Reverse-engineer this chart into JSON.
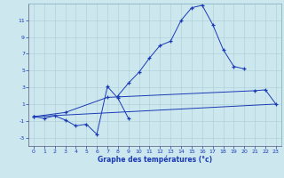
{
  "xlabel": "Graphe des températures (°c)",
  "background_color": "#cce8ee",
  "grid_color": "#aacdd6",
  "line_color": "#1a3ab5",
  "x_values": [
    0,
    1,
    2,
    3,
    4,
    5,
    6,
    7,
    8,
    9,
    10,
    11,
    12,
    13,
    14,
    15,
    16,
    17,
    18,
    19,
    20,
    21,
    22,
    23
  ],
  "line_main": [
    null,
    null,
    null,
    null,
    null,
    null,
    null,
    null,
    2.0,
    3.5,
    4.8,
    6.5,
    8.0,
    8.5,
    11.0,
    12.5,
    12.8,
    10.5,
    7.5,
    5.5,
    5.2,
    null,
    null,
    null
  ],
  "line_flat1": [
    -0.5,
    null,
    null,
    null,
    null,
    null,
    null,
    null,
    null,
    null,
    null,
    null,
    null,
    null,
    null,
    null,
    null,
    null,
    null,
    null,
    null,
    null,
    null,
    1.0
  ],
  "line_flat2": [
    -0.5,
    null,
    null,
    null,
    null,
    null,
    null,
    null,
    1.5,
    null,
    null,
    null,
    null,
    null,
    null,
    null,
    null,
    null,
    null,
    null,
    null,
    null,
    null,
    null
  ],
  "line_flat2_end": [
    null,
    null,
    null,
    null,
    null,
    null,
    null,
    null,
    null,
    null,
    null,
    null,
    null,
    null,
    null,
    null,
    null,
    null,
    null,
    null,
    null,
    null,
    null,
    1.0
  ],
  "line_zigzag": [
    -0.5,
    -0.7,
    -0.4,
    -0.9,
    -1.6,
    -1.4,
    -2.6,
    3.1,
    1.7,
    -0.7,
    null,
    null,
    null,
    null,
    null,
    null,
    null,
    null,
    null,
    null,
    null,
    null,
    null,
    null
  ],
  "line_mid": [
    -0.5,
    null,
    null,
    0.0,
    null,
    null,
    null,
    1.8,
    null,
    null,
    null,
    null,
    null,
    null,
    null,
    null,
    null,
    null,
    null,
    null,
    null,
    2.6,
    2.7,
    1.0
  ],
  "ylim": [
    -4,
    13
  ],
  "xlim": [
    -0.5,
    23.5
  ],
  "yticks": [
    -3,
    -1,
    1,
    3,
    5,
    7,
    9,
    11
  ],
  "xticks": [
    0,
    1,
    2,
    3,
    4,
    5,
    6,
    7,
    8,
    9,
    10,
    11,
    12,
    13,
    14,
    15,
    16,
    17,
    18,
    19,
    20,
    21,
    22,
    23
  ]
}
